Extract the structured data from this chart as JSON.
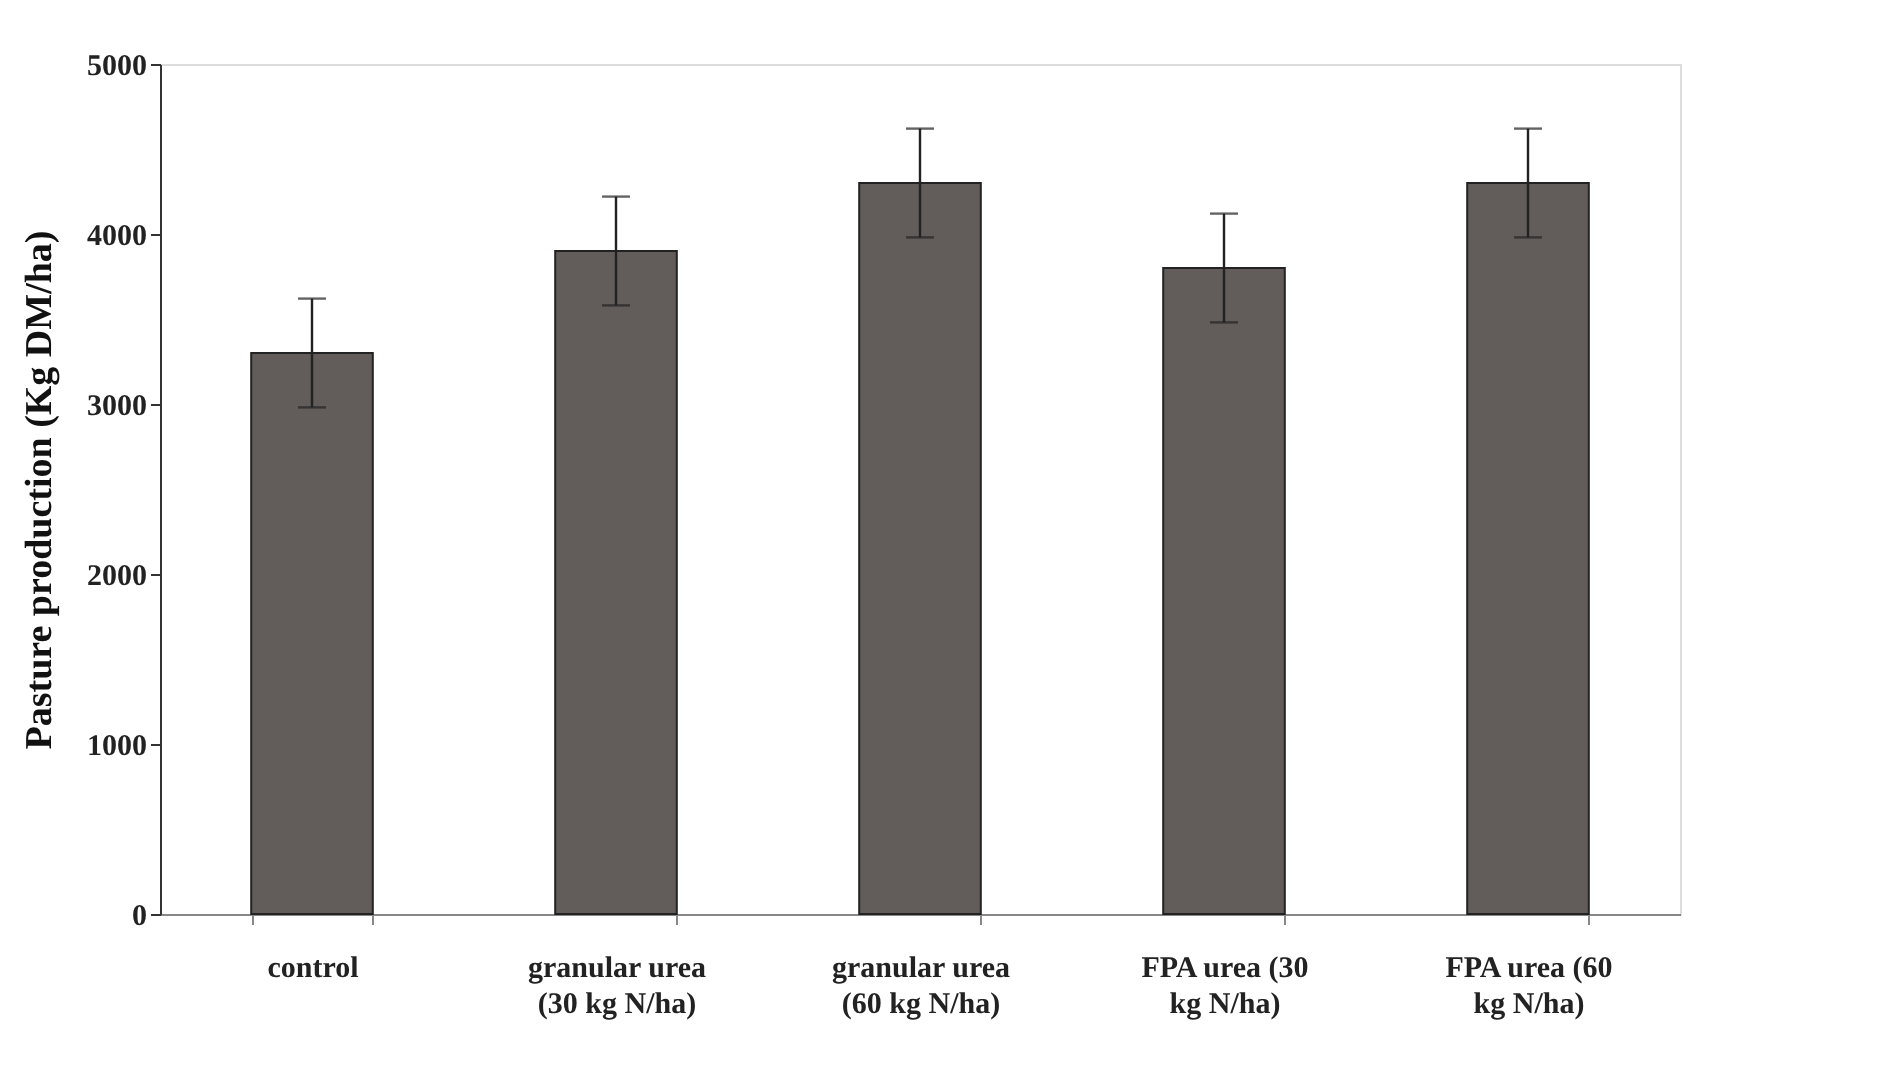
{
  "chart_data": {
    "type": "bar",
    "ylabel": "Pasture production (Kg DM/ha)",
    "categories": [
      "control",
      "granular urea (30 kg N/ha)",
      "granular urea (60 kg N/ha)",
      "FPA urea (30 kg N/ha)",
      "FPA urea (60 kg N/ha)"
    ],
    "values": [
      3300,
      3900,
      4300,
      3800,
      4300
    ],
    "errors": [
      320,
      320,
      320,
      320,
      320
    ],
    "color": "#625d5b",
    "ylim": [
      0,
      5000
    ],
    "yticks": [
      0,
      1000,
      2000,
      3000,
      4000,
      5000
    ],
    "grid": false
  }
}
